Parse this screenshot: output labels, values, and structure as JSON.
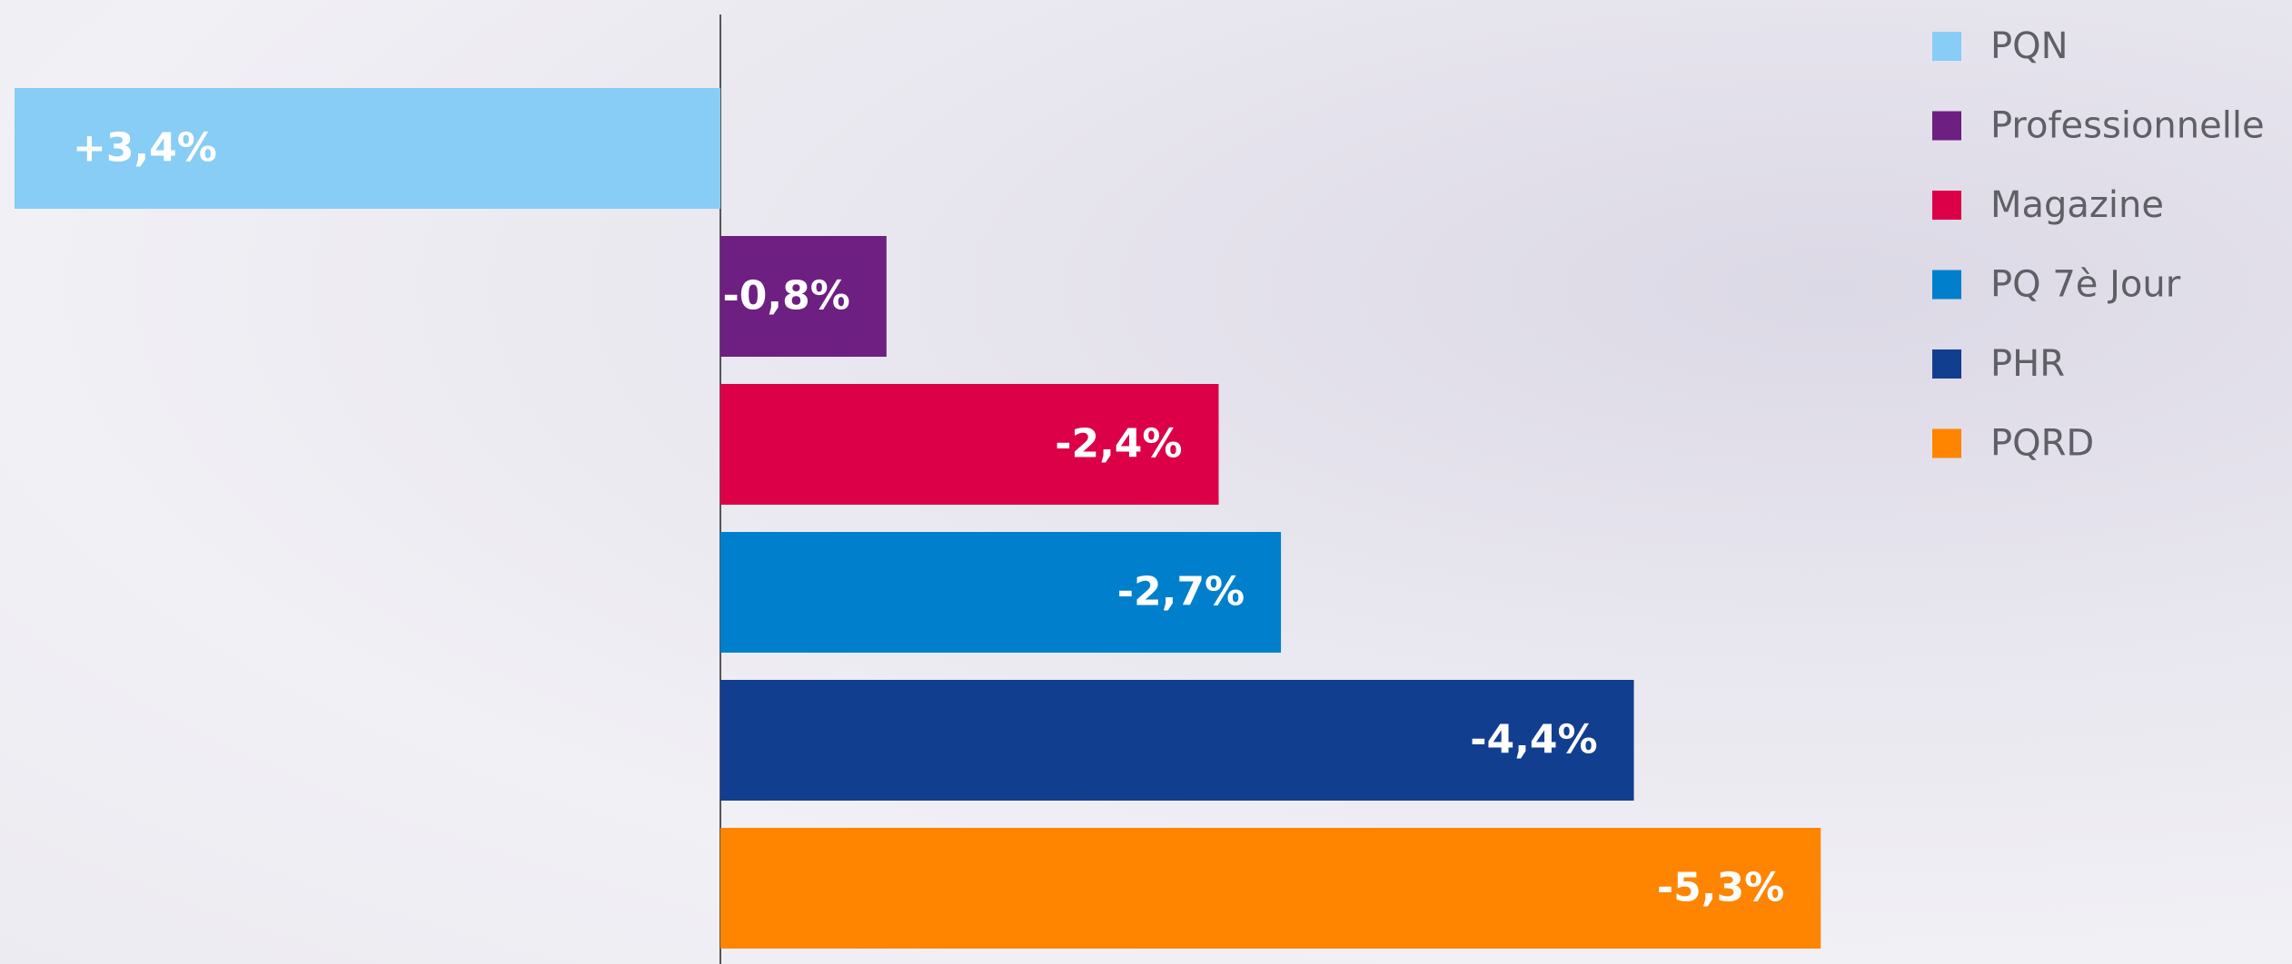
{
  "chart_data": {
    "type": "hbar",
    "categories": [
      "PQN",
      "Professionnelle",
      "Magazine",
      "PQ 7è Jour",
      "PHR",
      "PQRD"
    ],
    "values": [
      3.4,
      -0.8,
      -2.4,
      -2.7,
      -4.4,
      -5.3
    ],
    "value_labels": [
      "+3,4%",
      "-0,8%",
      "-2,4%",
      "-2,7%",
      "-4,4%",
      "-5,3%"
    ],
    "colors": [
      "#87cdf5",
      "#6e1f82",
      "#dc0048",
      "#0080cc",
      "#123e8f",
      "#ff8400"
    ],
    "xlim": [
      3.47,
      -7.57
    ],
    "legend": "top-right"
  }
}
